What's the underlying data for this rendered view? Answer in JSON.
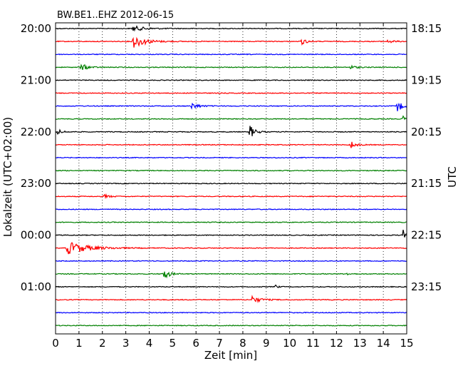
{
  "chart_data": {
    "type": "line",
    "title": "BW.BE1..EHZ 2012-06-15",
    "xlabel": "Zeit  [min]",
    "ylabel_left": "Lokalzeit (UTC+02:00)",
    "ylabel_right": "UTC",
    "xlim": [
      0,
      15
    ],
    "xticks": [
      "0",
      "1",
      "2",
      "3",
      "4",
      "5",
      "6",
      "7",
      "8",
      "9",
      "10",
      "11",
      "12",
      "13",
      "14",
      "15"
    ],
    "grid": "vertical dotted",
    "left_tick_labels": [
      "20:00",
      "21:00",
      "22:00",
      "23:00",
      "00:00",
      "01:00"
    ],
    "right_tick_labels": [
      "18:15",
      "19:15",
      "20:15",
      "21:15",
      "22:15",
      "23:15"
    ],
    "trace_colors": [
      "#000000",
      "#ff0000",
      "#0000ff",
      "#008000"
    ],
    "trace_count": 24,
    "events": [
      {
        "trace": 0,
        "minute": 3.3,
        "amp": 0.4,
        "dur": 1.2
      },
      {
        "trace": 1,
        "minute": 3.3,
        "amp": 1.0,
        "dur": 1.2
      },
      {
        "trace": 1,
        "minute": 10.5,
        "amp": 0.5,
        "dur": 0.5
      },
      {
        "trace": 1,
        "minute": 14.2,
        "amp": 0.25,
        "dur": 0.6
      },
      {
        "trace": 3,
        "minute": 1.1,
        "amp": 0.55,
        "dur": 0.6
      },
      {
        "trace": 3,
        "minute": 12.6,
        "amp": 0.25,
        "dur": 0.6
      },
      {
        "trace": 6,
        "minute": 5.8,
        "amp": 0.5,
        "dur": 0.7
      },
      {
        "trace": 6,
        "minute": 14.6,
        "amp": 1.0,
        "dur": 0.4
      },
      {
        "trace": 7,
        "minute": 14.85,
        "amp": 0.4,
        "dur": 0.2
      },
      {
        "trace": 8,
        "minute": 0.1,
        "amp": 0.35,
        "dur": 0.5
      },
      {
        "trace": 8,
        "minute": 8.3,
        "amp": 1.0,
        "dur": 0.5
      },
      {
        "trace": 9,
        "minute": 12.55,
        "amp": 0.7,
        "dur": 0.5
      },
      {
        "trace": 13,
        "minute": 2.1,
        "amp": 0.3,
        "dur": 0.5
      },
      {
        "trace": 16,
        "minute": 14.85,
        "amp": 0.8,
        "dur": 0.2
      },
      {
        "trace": 17,
        "minute": 0.5,
        "amp": 1.0,
        "dur": 2.0
      },
      {
        "trace": 19,
        "minute": 4.6,
        "amp": 1.0,
        "dur": 0.5
      },
      {
        "trace": 19,
        "minute": 12.4,
        "amp": 0.2,
        "dur": 0.4
      },
      {
        "trace": 20,
        "minute": 9.4,
        "amp": 0.3,
        "dur": 0.2
      },
      {
        "trace": 21,
        "minute": 8.4,
        "amp": 0.5,
        "dur": 0.8
      }
    ]
  }
}
